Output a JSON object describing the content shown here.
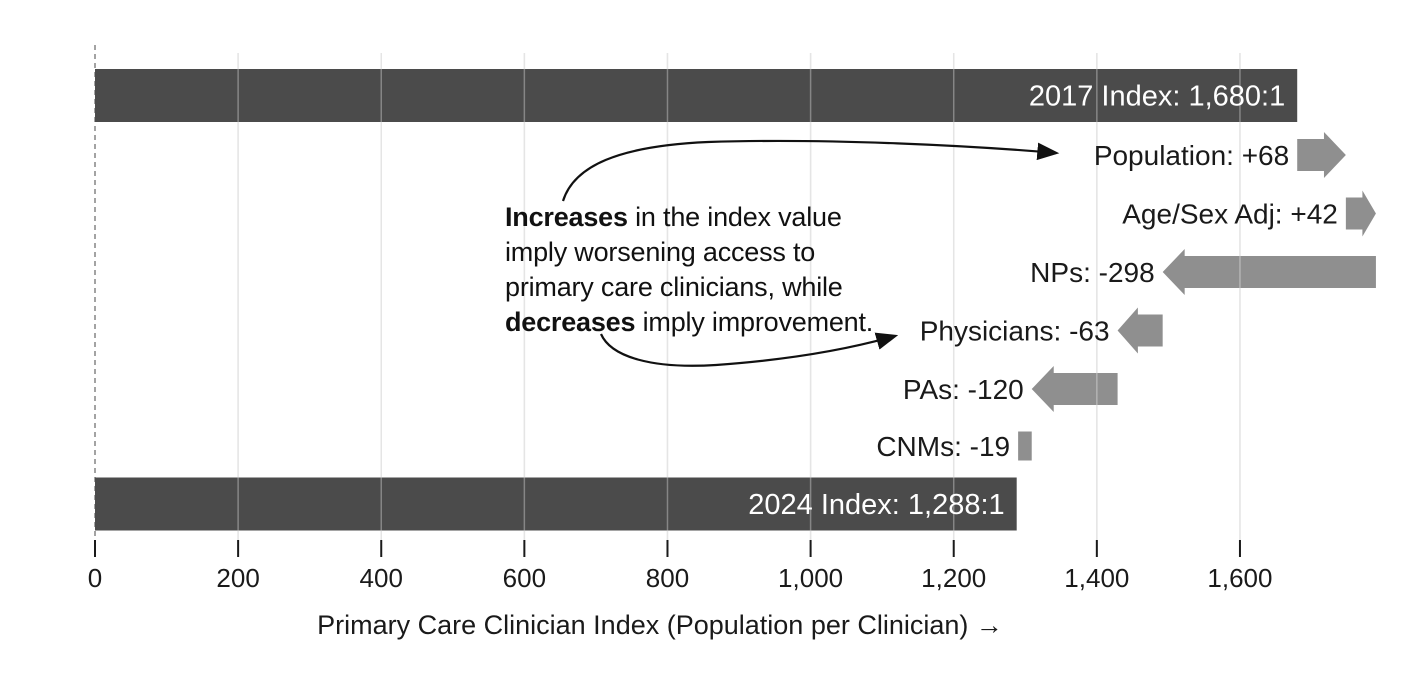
{
  "chart_data": {
    "type": "bar",
    "subtype": "horizontal-waterfall",
    "xlabel": "Primary Care Clinician Index (Population per Clinician) →",
    "xlim": [
      0,
      1815
    ],
    "grid": "vertical",
    "legend": "none",
    "x_ticks": [
      0,
      200,
      400,
      600,
      800,
      1000,
      1200,
      1400,
      1600
    ],
    "x_tick_labels": [
      "0",
      "200",
      "400",
      "600",
      "800",
      "1,000",
      "1,200",
      "1,400",
      "1,600"
    ],
    "rows": [
      {
        "name": "2017-index",
        "label": "2017 Index: 1,680:1",
        "kind": "total",
        "start": 0,
        "end": 1680,
        "value": 1680
      },
      {
        "name": "population",
        "label": "Population: +68",
        "kind": "increase",
        "start": 1680,
        "end": 1748,
        "value": 68
      },
      {
        "name": "age-sex-adj",
        "label": "Age/Sex Adj: +42",
        "kind": "increase",
        "start": 1748,
        "end": 1790,
        "value": 42
      },
      {
        "name": "nps",
        "label": "NPs: -298",
        "kind": "decrease",
        "start": 1790,
        "end": 1492,
        "value": -298
      },
      {
        "name": "physicians",
        "label": "Physicians: -63",
        "kind": "decrease",
        "start": 1492,
        "end": 1429,
        "value": -63
      },
      {
        "name": "pas",
        "label": "PAs: -120",
        "kind": "decrease",
        "start": 1429,
        "end": 1309,
        "value": -120
      },
      {
        "name": "cnms",
        "label": "CNMs: -19",
        "kind": "decrease",
        "start": 1309,
        "end": 1290,
        "value": -19
      },
      {
        "name": "2024-index",
        "label": "2024 Index: 1,288:1",
        "kind": "total",
        "start": 0,
        "end": 1288,
        "value": 1288
      }
    ],
    "colors": {
      "total_bar": "#4b4b4b",
      "change_arrow": "#8f8f8f",
      "gridline": "#d9d9d9",
      "zero_line": "#999999",
      "tick": "#1a1a1a",
      "bar_label_text": "#ffffff",
      "text": "#1a1a1a"
    }
  },
  "annotation": {
    "line1_bold": "Increases",
    "line1_rest": " in the index value",
    "line2": "imply worsening access to",
    "line3": "primary care clinicians, while",
    "line4_bold": "decreases",
    "line4_rest": " imply improvement."
  }
}
